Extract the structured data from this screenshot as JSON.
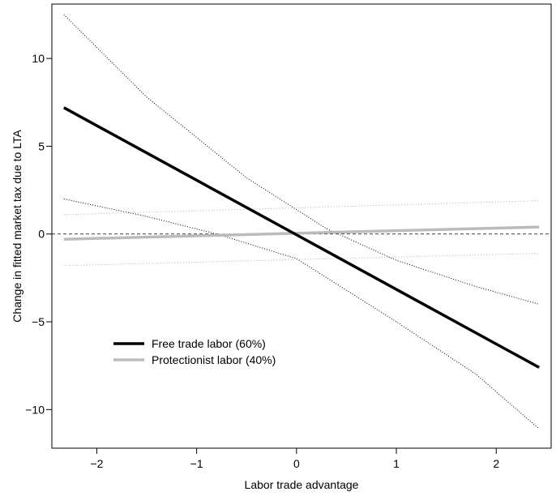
{
  "chart_data": {
    "type": "line",
    "xlabel": "Labor trade advantage",
    "ylabel": "Change in fitted market tax due to LTA",
    "xlim": [
      -2.45,
      2.55
    ],
    "ylim": [
      -12.2,
      13.1
    ],
    "x_ticks": [
      -2,
      -1,
      0,
      1,
      2
    ],
    "x_tick_labels": [
      "−2",
      "−1",
      "0",
      "1",
      "2"
    ],
    "y_ticks": [
      -10,
      -5,
      0,
      5,
      10
    ],
    "y_tick_labels": [
      "−10",
      "−5",
      "0",
      "5",
      "10"
    ],
    "grid": false,
    "reference_line_y": 0,
    "legend_placement": "bottom-left",
    "series": [
      {
        "name": "Free trade labor (60%)",
        "color": "#000000",
        "x": [
          -2.33,
          2.43
        ],
        "y": [
          7.2,
          -7.6
        ],
        "ci_upper": {
          "x": [
            -2.33,
            -1.5,
            -0.5,
            0.3,
            1.0,
            1.8,
            2.43
          ],
          "y": [
            12.5,
            7.8,
            3.2,
            0.3,
            -1.5,
            -3.0,
            -4.0
          ]
        },
        "ci_lower": {
          "x": [
            -2.33,
            -1.5,
            -0.8,
            0.0,
            0.5,
            1.0,
            1.8,
            2.43
          ],
          "y": [
            2.0,
            1.0,
            0.0,
            -1.4,
            -3.2,
            -5.0,
            -8.0,
            -11.1
          ]
        }
      },
      {
        "name": "Protectionist labor (40%)",
        "color": "#bbbbbb",
        "x": [
          -2.33,
          2.43
        ],
        "y": [
          -0.3,
          0.4
        ],
        "ci_upper": {
          "x": [
            -2.33,
            2.43
          ],
          "y": [
            1.1,
            1.9
          ]
        },
        "ci_lower": {
          "x": [
            -2.33,
            2.43
          ],
          "y": [
            -1.8,
            -1.1
          ]
        }
      }
    ]
  }
}
